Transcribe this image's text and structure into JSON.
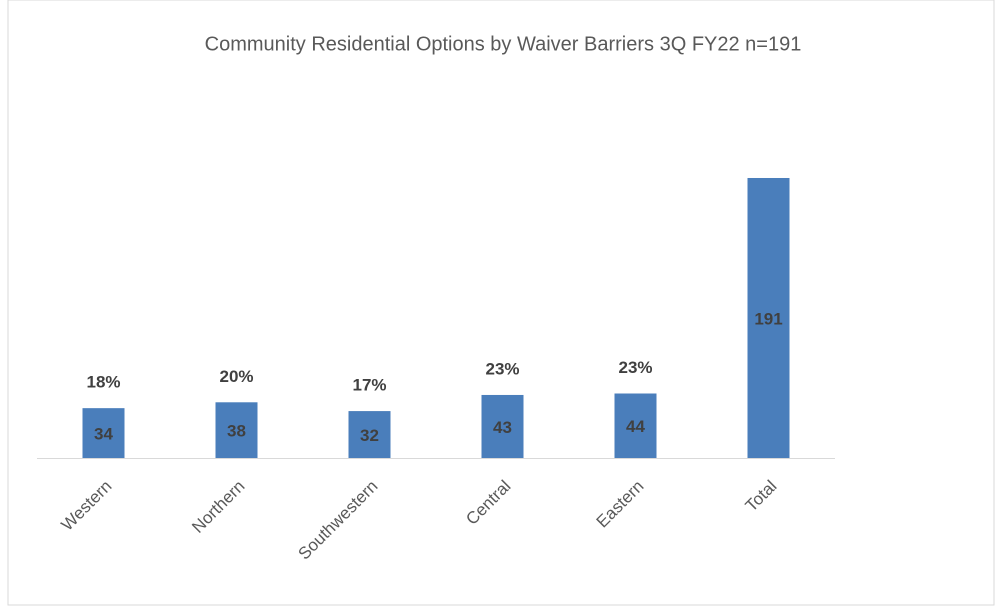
{
  "chart_data": {
    "type": "bar",
    "title": "Community Residential Options by Waiver Barriers  3Q FY22 n=191",
    "categories": [
      "Western",
      "Northern",
      "Southwestern",
      "Central",
      "Eastern",
      "Total"
    ],
    "values": [
      34,
      38,
      32,
      43,
      44,
      191
    ],
    "color": "#4a7ebb",
    "percentages": {
      "values": [
        18,
        20,
        17,
        23,
        23,
        null
      ],
      "value_labels": [
        "18%",
        "20%",
        "17%",
        "23%",
        "23%",
        null
      ]
    },
    "ylim": [
      0,
      250
    ]
  }
}
